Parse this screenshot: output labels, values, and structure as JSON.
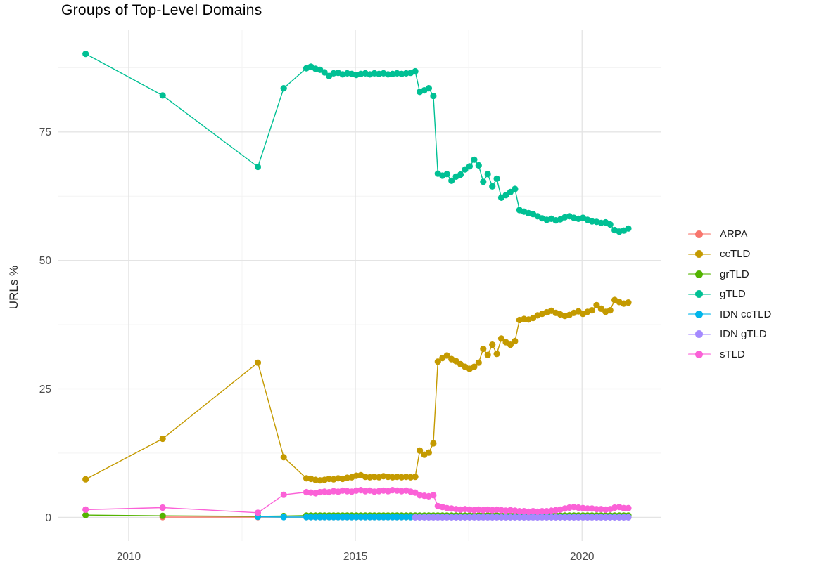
{
  "chart_data": {
    "type": "line",
    "title": "Groups of Top-Level Domains",
    "xlabel": "",
    "ylabel": "URLs %",
    "legend_position": "right",
    "grid": true,
    "x_ticks": [
      2010,
      2015,
      2020
    ],
    "x_minor": [
      2012.5,
      2017.5
    ],
    "y_ticks": [
      0,
      25,
      50,
      75
    ],
    "y_minor": [
      12.5,
      37.5,
      62.5,
      87.5
    ],
    "xlim": [
      2008.45,
      2021.75
    ],
    "ylim": [
      -4.6,
      94.8
    ],
    "colors": {
      "grid_major": "#E4E4E4",
      "grid_minor": "#F3F3F3",
      "tick_text": "#4d4d4d",
      "title_text": "#000000",
      "background": "#FFFFFF"
    },
    "x_dense": [
      2013.92,
      2014.02,
      2014.12,
      2014.22,
      2014.32,
      2014.42,
      2014.52,
      2014.62,
      2014.72,
      2014.82,
      2014.92,
      2015.02,
      2015.12,
      2015.22,
      2015.32,
      2015.42,
      2015.52,
      2015.62,
      2015.72,
      2015.82,
      2015.92,
      2016.02,
      2016.12,
      2016.22,
      2016.32,
      2016.42,
      2016.52,
      2016.62,
      2016.72,
      2016.82,
      2016.92,
      2017.02,
      2017.12,
      2017.22,
      2017.32,
      2017.42,
      2017.52,
      2017.62,
      2017.72,
      2017.82,
      2017.92,
      2018.02,
      2018.12,
      2018.22,
      2018.32,
      2018.42,
      2018.52,
      2018.62,
      2018.72,
      2018.82,
      2018.92,
      2019.02,
      2019.12,
      2019.22,
      2019.32,
      2019.42,
      2019.52,
      2019.62,
      2019.72,
      2019.82,
      2019.92,
      2020.02,
      2020.12,
      2020.22,
      2020.32,
      2020.42,
      2020.52,
      2020.62,
      2020.72,
      2020.82,
      2020.92,
      2021.02
    ],
    "series": [
      {
        "name": "ARPA",
        "color": "#F8766D",
        "x_sparse": [
          2010.75,
          2012.85
        ],
        "y_sparse": [
          0.05,
          0.05
        ],
        "y_dense_const": 0.05
      },
      {
        "name": "ccTLD",
        "color": "#C49A00",
        "x_sparse": [
          2009.05,
          2010.75,
          2012.85,
          2013.42
        ],
        "y_sparse": [
          7.4,
          15.3,
          30.1,
          11.7
        ],
        "y_dense": [
          7.6,
          7.5,
          7.3,
          7.2,
          7.3,
          7.5,
          7.4,
          7.6,
          7.5,
          7.7,
          7.8,
          8.1,
          8.2,
          7.9,
          7.8,
          7.9,
          7.8,
          8.0,
          7.9,
          7.8,
          7.9,
          7.8,
          7.9,
          7.8,
          7.9,
          13.0,
          12.2,
          12.6,
          14.4,
          30.3,
          31.0,
          31.5,
          30.8,
          30.4,
          29.8,
          29.3,
          28.9,
          29.3,
          30.1,
          32.8,
          31.6,
          33.6,
          31.8,
          34.8,
          34.1,
          33.6,
          34.3,
          38.4,
          38.6,
          38.5,
          38.8,
          39.3,
          39.6,
          39.9,
          40.2,
          39.8,
          39.5,
          39.2,
          39.4,
          39.8,
          40.1,
          39.6,
          40.0,
          40.3,
          41.3,
          40.6,
          40.0,
          40.3,
          42.3,
          41.9,
          41.6,
          41.8
        ]
      },
      {
        "name": "grTLD",
        "color": "#53B400",
        "x_sparse": [
          2009.05,
          2010.75,
          2012.85,
          2013.42
        ],
        "y_sparse": [
          0.45,
          0.3,
          0.2,
          0.25
        ],
        "y_dense_const": 0.35
      },
      {
        "name": "gTLD",
        "color": "#00C094",
        "x_sparse": [
          2009.05,
          2010.75,
          2012.85,
          2013.42
        ],
        "y_sparse": [
          90.2,
          82.1,
          68.2,
          83.5
        ],
        "y_dense": [
          87.4,
          87.7,
          87.3,
          87.1,
          86.6,
          85.9,
          86.4,
          86.5,
          86.2,
          86.4,
          86.3,
          86.1,
          86.3,
          86.4,
          86.2,
          86.4,
          86.3,
          86.4,
          86.2,
          86.3,
          86.4,
          86.3,
          86.4,
          86.5,
          86.8,
          82.8,
          83.1,
          83.5,
          82.0,
          66.9,
          66.5,
          66.8,
          65.5,
          66.3,
          66.7,
          67.7,
          68.3,
          69.6,
          68.5,
          65.3,
          66.8,
          64.4,
          65.9,
          62.2,
          62.7,
          63.3,
          63.9,
          59.8,
          59.5,
          59.2,
          59.0,
          58.6,
          58.2,
          57.9,
          58.1,
          57.8,
          58.0,
          58.4,
          58.6,
          58.3,
          58.1,
          58.3,
          57.9,
          57.6,
          57.5,
          57.3,
          57.4,
          57.0,
          55.9,
          55.6,
          55.8,
          56.2
        ]
      },
      {
        "name": "IDN ccTLD",
        "color": "#00B6EB",
        "x_sparse": [
          2012.85,
          2013.42
        ],
        "y_sparse": [
          0.1,
          0.05
        ],
        "y_dense_const": 0.05
      },
      {
        "name": "IDN gTLD",
        "color": "#A58AFF",
        "x_sparse": [],
        "y_sparse": [],
        "dense_start_index": 24,
        "y_dense_const": 0.0
      },
      {
        "name": "sTLD",
        "color": "#FB61D7",
        "x_sparse": [
          2009.05,
          2010.75,
          2012.85,
          2013.42
        ],
        "y_sparse": [
          1.5,
          1.9,
          0.9,
          4.4
        ],
        "y_dense": [
          4.9,
          4.8,
          4.7,
          4.9,
          5.0,
          4.9,
          5.1,
          5.0,
          5.2,
          5.1,
          5.0,
          5.2,
          5.3,
          5.1,
          5.2,
          5.0,
          5.1,
          5.2,
          5.1,
          5.3,
          5.2,
          5.1,
          5.2,
          5.0,
          4.8,
          4.3,
          4.2,
          4.1,
          4.3,
          2.2,
          2.0,
          1.8,
          1.7,
          1.6,
          1.5,
          1.6,
          1.5,
          1.4,
          1.5,
          1.4,
          1.5,
          1.4,
          1.5,
          1.4,
          1.3,
          1.4,
          1.3,
          1.2,
          1.2,
          1.1,
          1.2,
          1.1,
          1.2,
          1.2,
          1.3,
          1.4,
          1.5,
          1.7,
          1.9,
          2.0,
          1.9,
          1.8,
          1.7,
          1.7,
          1.6,
          1.6,
          1.5,
          1.6,
          1.9,
          2.0,
          1.8,
          1.8
        ]
      }
    ]
  }
}
